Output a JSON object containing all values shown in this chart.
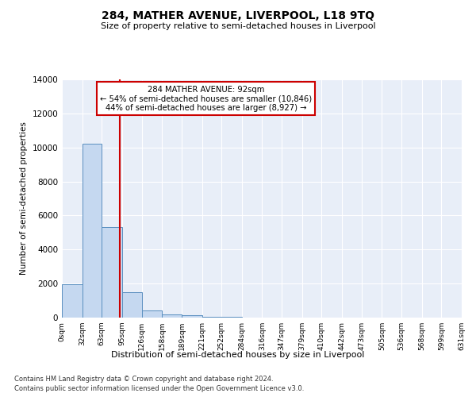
{
  "title": "284, MATHER AVENUE, LIVERPOOL, L18 9TQ",
  "subtitle": "Size of property relative to semi-detached houses in Liverpool",
  "xlabel": "Distribution of semi-detached houses by size in Liverpool",
  "ylabel": "Number of semi-detached properties",
  "footnote1": "Contains HM Land Registry data © Crown copyright and database right 2024.",
  "footnote2": "Contains public sector information licensed under the Open Government Licence v3.0.",
  "annotation_title": "284 MATHER AVENUE: 92sqm",
  "annotation_line1": "← 54% of semi-detached houses are smaller (10,846)",
  "annotation_line2": "44% of semi-detached houses are larger (8,927) →",
  "property_sqm": 92,
  "bin_edges": [
    0,
    32,
    63,
    95,
    126,
    158,
    189,
    221,
    252,
    284,
    316,
    347,
    379,
    410,
    442,
    473,
    505,
    536,
    568,
    599,
    631
  ],
  "bin_labels": [
    "0sqm",
    "32sqm",
    "63sqm",
    "95sqm",
    "126sqm",
    "158sqm",
    "189sqm",
    "221sqm",
    "252sqm",
    "284sqm",
    "316sqm",
    "347sqm",
    "379sqm",
    "410sqm",
    "442sqm",
    "473sqm",
    "505sqm",
    "536sqm",
    "568sqm",
    "599sqm",
    "631sqm"
  ],
  "counts": [
    1950,
    10200,
    5300,
    1500,
    430,
    200,
    140,
    70,
    65,
    20,
    0,
    0,
    0,
    0,
    0,
    0,
    0,
    0,
    0,
    0
  ],
  "bar_color": "#c5d8f0",
  "bar_edge_color": "#5a8fc0",
  "red_line_color": "#cc0000",
  "background_color": "#e8eef8",
  "grid_color": "#ffffff",
  "ylim": [
    0,
    14000
  ],
  "yticks": [
    0,
    2000,
    4000,
    6000,
    8000,
    10000,
    12000,
    14000
  ]
}
